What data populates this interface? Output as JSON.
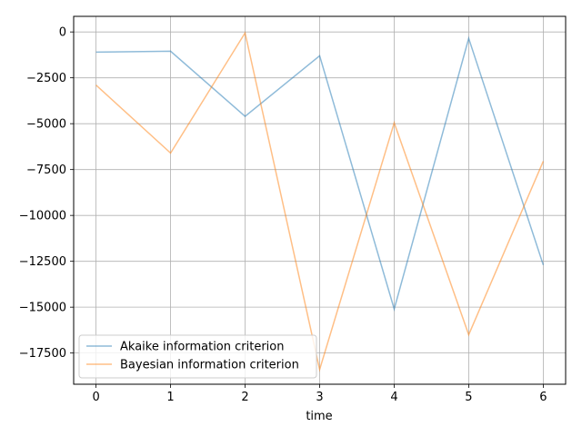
{
  "chart_data": {
    "type": "line",
    "title": "",
    "xlabel": "time",
    "ylabel": "",
    "x": [
      0,
      1,
      2,
      3,
      4,
      5,
      6
    ],
    "xticks": [
      "0",
      "1",
      "2",
      "3",
      "4",
      "5",
      "6"
    ],
    "xlim": [
      -0.3,
      6.3
    ],
    "yticks": [
      "0",
      "−2500",
      "−5000",
      "−7500",
      "−10000",
      "−12500",
      "−15000",
      "−17500"
    ],
    "ytick_values": [
      0,
      -2500,
      -5000,
      -7500,
      -10000,
      -12500,
      -15000,
      -17500
    ],
    "ylim": [
      -19200,
      850
    ],
    "grid": true,
    "legend_position": "lower-left",
    "series": [
      {
        "name": "Akaike information criterion",
        "color": "#1f77b4",
        "values": [
          -1100,
          -1050,
          -4600,
          -1300,
          -15100,
          -350,
          -12700
        ]
      },
      {
        "name": "Bayesian information criterion",
        "color": "#ff7f0e",
        "values": [
          -2900,
          -6600,
          -50,
          -18400,
          -4950,
          -16500,
          -7050
        ]
      }
    ]
  }
}
